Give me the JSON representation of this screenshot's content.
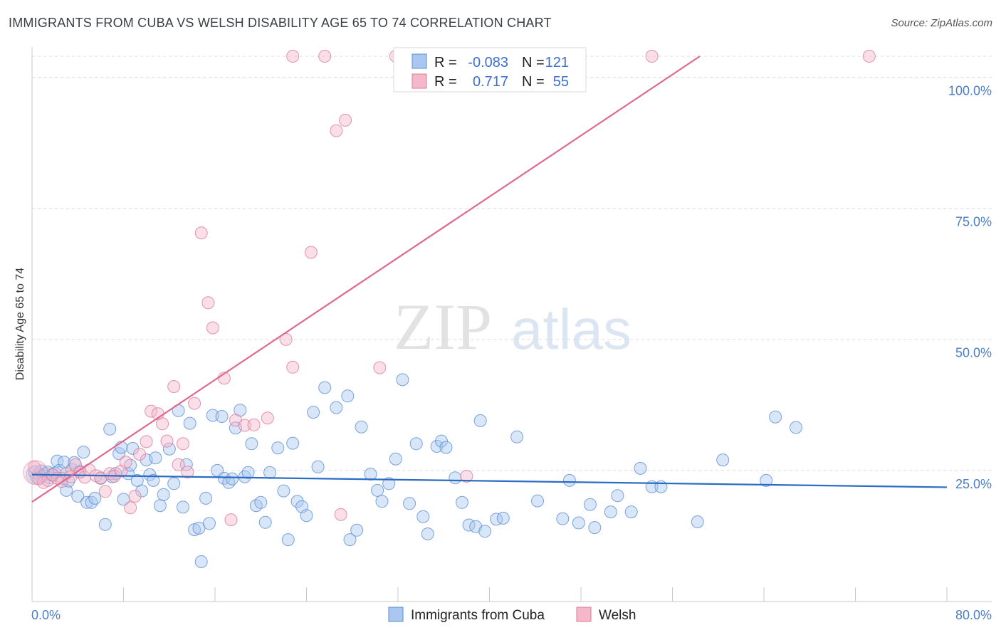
{
  "header": {
    "title": "IMMIGRANTS FROM CUBA VS WELSH DISABILITY AGE 65 TO 74 CORRELATION CHART",
    "source": "Source: ZipAtlas.com"
  },
  "watermark": {
    "zip": "ZIP",
    "atlas": "atlas"
  },
  "colors": {
    "blue_fill": "#a9c7f0",
    "blue_stroke": "#5b8fd6",
    "blue_line": "#2b6cc4",
    "pink_fill": "#f5b8cb",
    "pink_stroke": "#e07a9a",
    "pink_line": "#e0698f",
    "tick_text": "#4a7fc8",
    "grid": "#dcdcdc"
  },
  "legend": {
    "rows": [
      {
        "r_label": "R =",
        "r_value": "-0.083",
        "n_label": "N =",
        "n_value": "121"
      },
      {
        "r_label": "R =",
        "r_value": "0.717",
        "n_label": "N =",
        "n_value": "55"
      }
    ]
  },
  "bottom_legend": [
    "Immigrants from Cuba",
    "Welsh"
  ],
  "chart_data": {
    "type": "scatter",
    "title": "IMMIGRANTS FROM CUBA VS WELSH DISABILITY AGE 65 TO 74 CORRELATION CHART",
    "xlabel": "",
    "ylabel": "Disability Age 65 to 74",
    "xlim": [
      0,
      80
    ],
    "ylim": [
      0,
      104
    ],
    "x_tick_labels": [
      "0.0%",
      "80.0%"
    ],
    "y_tick_values": [
      25,
      50,
      75,
      100
    ],
    "y_tick_labels": [
      "25.0%",
      "50.0%",
      "75.0%",
      "100.0%"
    ],
    "grid": true,
    "legend_position": "top-center",
    "series": [
      {
        "name": "Immigrants from Cuba",
        "color": "#a9c7f0",
        "trend": {
          "x": [
            0,
            80
          ],
          "y": [
            24.2,
            21.8
          ]
        },
        "points": [
          [
            0.2,
            24.6
          ],
          [
            0.4,
            23.8
          ],
          [
            0.6,
            24.3
          ],
          [
            0.8,
            24.9
          ],
          [
            1.0,
            24.0
          ],
          [
            1.2,
            24.4
          ],
          [
            1.4,
            24.7
          ],
          [
            1.5,
            23.6
          ],
          [
            1.8,
            24.1
          ],
          [
            2.0,
            24.5
          ],
          [
            2.2,
            26.8
          ],
          [
            2.4,
            25.0
          ],
          [
            2.6,
            23.5
          ],
          [
            2.8,
            26.6
          ],
          [
            3.0,
            21.2
          ],
          [
            3.2,
            23.0
          ],
          [
            3.5,
            25.2
          ],
          [
            3.7,
            26.5
          ],
          [
            4.0,
            20.1
          ],
          [
            4.2,
            24.8
          ],
          [
            4.5,
            28.5
          ],
          [
            4.8,
            18.9
          ],
          [
            5.2,
            18.9
          ],
          [
            5.5,
            19.7
          ],
          [
            6.0,
            23.5
          ],
          [
            6.4,
            14.7
          ],
          [
            6.8,
            32.9
          ],
          [
            7.0,
            23.8
          ],
          [
            7.3,
            24.4
          ],
          [
            7.6,
            28.2
          ],
          [
            7.8,
            29.4
          ],
          [
            8.0,
            19.5
          ],
          [
            8.4,
            24.4
          ],
          [
            8.6,
            26.0
          ],
          [
            8.8,
            29.2
          ],
          [
            9.2,
            23.1
          ],
          [
            9.6,
            21.1
          ],
          [
            10.0,
            27.0
          ],
          [
            10.3,
            24.2
          ],
          [
            10.6,
            23.1
          ],
          [
            10.8,
            27.4
          ],
          [
            11.2,
            18.3
          ],
          [
            11.5,
            20.4
          ],
          [
            12.0,
            29.1
          ],
          [
            12.4,
            22.5
          ],
          [
            12.8,
            36.4
          ],
          [
            13.2,
            18.0
          ],
          [
            13.5,
            26.1
          ],
          [
            13.8,
            34.0
          ],
          [
            14.2,
            13.7
          ],
          [
            14.6,
            14.0
          ],
          [
            14.8,
            7.6
          ],
          [
            15.2,
            19.7
          ],
          [
            15.5,
            14.9
          ],
          [
            15.8,
            35.5
          ],
          [
            16.2,
            25.0
          ],
          [
            16.6,
            35.3
          ],
          [
            16.8,
            23.5
          ],
          [
            17.2,
            22.7
          ],
          [
            17.5,
            23.4
          ],
          [
            17.8,
            33.1
          ],
          [
            18.2,
            36.5
          ],
          [
            18.6,
            23.8
          ],
          [
            18.9,
            24.6
          ],
          [
            19.2,
            30.1
          ],
          [
            19.6,
            18.3
          ],
          [
            20.0,
            18.9
          ],
          [
            20.4,
            15.1
          ],
          [
            20.8,
            24.6
          ],
          [
            21.5,
            29.3
          ],
          [
            22.0,
            21.1
          ],
          [
            22.4,
            11.8
          ],
          [
            22.8,
            30.2
          ],
          [
            23.2,
            19.1
          ],
          [
            23.6,
            18.1
          ],
          [
            24.0,
            16.4
          ],
          [
            24.6,
            36.1
          ],
          [
            25.0,
            25.7
          ],
          [
            25.6,
            40.8
          ],
          [
            26.6,
            37.0
          ],
          [
            27.6,
            39.2
          ],
          [
            27.8,
            11.8
          ],
          [
            28.4,
            13.6
          ],
          [
            28.8,
            33.3
          ],
          [
            29.6,
            24.3
          ],
          [
            30.2,
            21.2
          ],
          [
            30.6,
            19.1
          ],
          [
            31.2,
            22.5
          ],
          [
            31.8,
            27.2
          ],
          [
            32.4,
            42.3
          ],
          [
            33.0,
            18.7
          ],
          [
            33.6,
            30.1
          ],
          [
            34.2,
            16.2
          ],
          [
            34.6,
            12.9
          ],
          [
            35.4,
            29.6
          ],
          [
            35.8,
            30.6
          ],
          [
            36.2,
            29.4
          ],
          [
            37.0,
            23.6
          ],
          [
            37.6,
            18.9
          ],
          [
            38.2,
            14.6
          ],
          [
            38.8,
            14.3
          ],
          [
            39.2,
            34.5
          ],
          [
            39.6,
            13.4
          ],
          [
            40.6,
            15.7
          ],
          [
            41.2,
            15.9
          ],
          [
            42.4,
            31.4
          ],
          [
            44.2,
            19.2
          ],
          [
            46.4,
            15.8
          ],
          [
            47.0,
            23.1
          ],
          [
            47.8,
            15.0
          ],
          [
            48.8,
            18.5
          ],
          [
            49.2,
            14.1
          ],
          [
            50.6,
            17.1
          ],
          [
            51.2,
            20.2
          ],
          [
            52.4,
            17.1
          ],
          [
            53.2,
            25.4
          ],
          [
            54.2,
            21.9
          ],
          [
            55.0,
            21.9
          ],
          [
            58.2,
            15.2
          ],
          [
            60.4,
            27.0
          ],
          [
            64.2,
            23.1
          ],
          [
            65.0,
            35.2
          ],
          [
            66.8,
            33.2
          ]
        ]
      },
      {
        "name": "Welsh",
        "color": "#f5b8cb",
        "trend": {
          "x": [
            0,
            58.4
          ],
          "y": [
            19.0,
            104
          ]
        },
        "points": [
          [
            0.2,
            25.6
          ],
          [
            0.6,
            23.4
          ],
          [
            1.0,
            22.7
          ],
          [
            1.4,
            23.1
          ],
          [
            1.8,
            24.2
          ],
          [
            2.2,
            23.5
          ],
          [
            2.6,
            22.9
          ],
          [
            3.0,
            24.4
          ],
          [
            3.4,
            23.8
          ],
          [
            3.8,
            26.1
          ],
          [
            4.2,
            24.6
          ],
          [
            4.6,
            23.7
          ],
          [
            5.0,
            25.1
          ],
          [
            5.6,
            24.0
          ],
          [
            6.0,
            23.6
          ],
          [
            6.4,
            21.0
          ],
          [
            6.8,
            24.4
          ],
          [
            7.2,
            23.9
          ],
          [
            7.8,
            24.9
          ],
          [
            8.2,
            26.6
          ],
          [
            8.6,
            17.9
          ],
          [
            9.0,
            20.1
          ],
          [
            9.4,
            28.1
          ],
          [
            10.0,
            30.5
          ],
          [
            10.4,
            36.3
          ],
          [
            11.0,
            35.8
          ],
          [
            11.4,
            33.9
          ],
          [
            11.8,
            30.6
          ],
          [
            12.4,
            41.0
          ],
          [
            12.8,
            26.1
          ],
          [
            13.2,
            30.1
          ],
          [
            13.6,
            24.7
          ],
          [
            14.2,
            37.8
          ],
          [
            14.8,
            70.3
          ],
          [
            15.4,
            57.0
          ],
          [
            15.8,
            52.2
          ],
          [
            16.8,
            42.6
          ],
          [
            17.4,
            15.6
          ],
          [
            17.8,
            34.6
          ],
          [
            18.6,
            33.6
          ],
          [
            19.4,
            33.7
          ],
          [
            20.6,
            35.0
          ],
          [
            22.2,
            50.0
          ],
          [
            22.8,
            44.7
          ],
          [
            22.8,
            104
          ],
          [
            25.6,
            104
          ],
          [
            24.4,
            66.6
          ],
          [
            26.6,
            89.8
          ],
          [
            27.4,
            91.8
          ],
          [
            27.0,
            16.6
          ],
          [
            30.4,
            44.6
          ],
          [
            31.8,
            104
          ],
          [
            38.0,
            23.9
          ],
          [
            54.2,
            104
          ],
          [
            73.2,
            104
          ]
        ]
      }
    ]
  }
}
